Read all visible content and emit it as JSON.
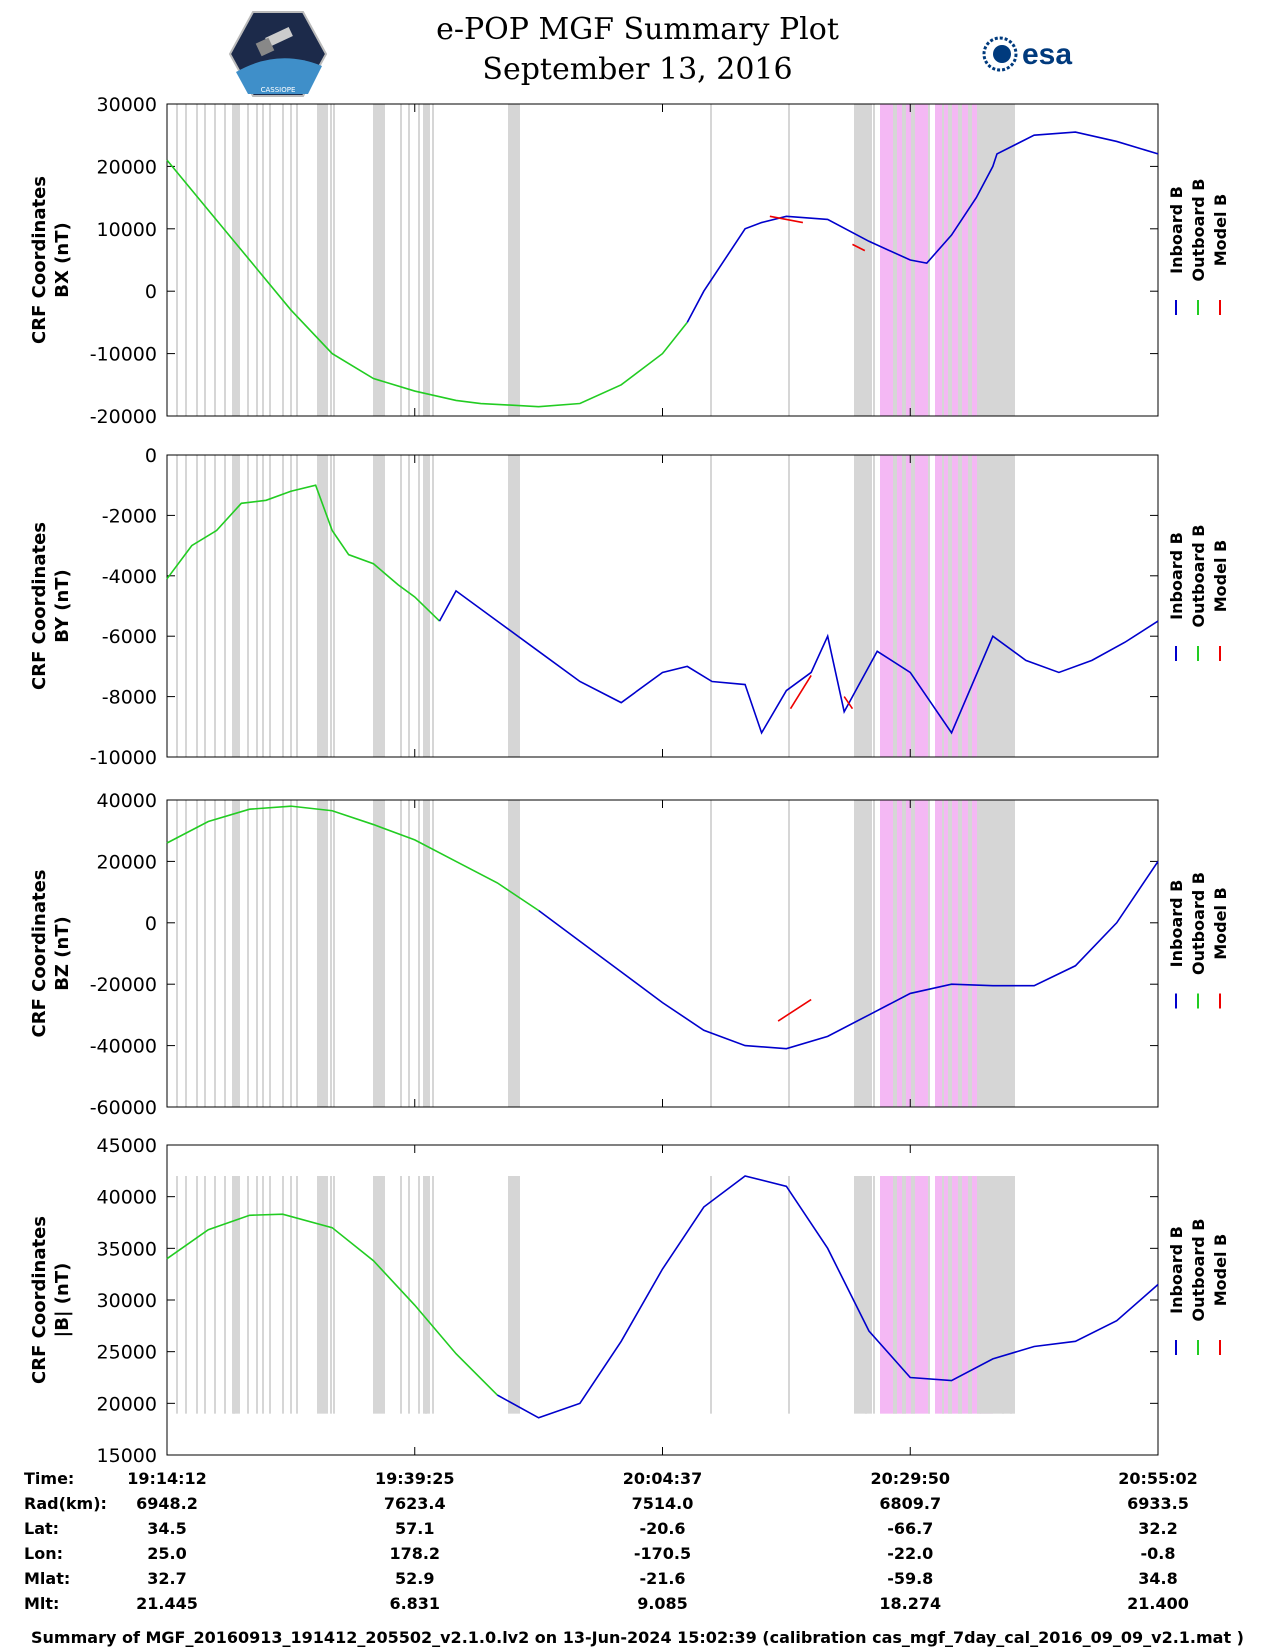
{
  "header": {
    "title_line1": "e-POP MGF Summary Plot",
    "title_line2": "September 13, 2016",
    "left_logo_text": "CASSIOPE",
    "right_logo_text": "esa"
  },
  "colors": {
    "inboard": "#0000cc",
    "outboard": "#22cc22",
    "model": "#ee0000",
    "gray_band": "#d6d6d6",
    "pink_band": "#f4b8f4",
    "esa_blue": "#003a7d"
  },
  "legend": [
    "Inboard B",
    "Outboard B",
    "Model B"
  ],
  "x_ticks": [
    "19:14:12",
    "19:39:25",
    "20:04:37",
    "20:29:50",
    "20:55:02"
  ],
  "chart_data": [
    {
      "type": "line",
      "ylabel_line1": "CRF Coordinates",
      "ylabel_line2": "BX (nT)",
      "ylim": [
        -20000,
        30000
      ],
      "yticks": [
        "30000",
        "20000",
        "10000",
        "0",
        "-10000",
        "-20000"
      ],
      "x_minutes": [
        0,
        5,
        10,
        15,
        20,
        25,
        30,
        35,
        38,
        45,
        50,
        55,
        60,
        63,
        65,
        70,
        72,
        75,
        80,
        85,
        90,
        92,
        95,
        98,
        100,
        100.5,
        105,
        110,
        115,
        120
      ],
      "inboard": [
        21000,
        13000,
        5000,
        -3000,
        -10000,
        -14000,
        -16000,
        -17500,
        -18000,
        -18500,
        -18000,
        -15000,
        -10000,
        -5000,
        0,
        10000,
        11000,
        12000,
        11500,
        8000,
        5000,
        4500,
        9000,
        15000,
        20000,
        22000,
        25000,
        25500,
        24000,
        22000
      ],
      "outboard_end_index": 13,
      "model_overlay": [
        {
          "x": [
            73,
            77
          ],
          "y": [
            12000,
            11000
          ]
        },
        {
          "x": [
            83,
            84.5
          ],
          "y": [
            7500,
            6500
          ]
        }
      ]
    },
    {
      "type": "line",
      "ylabel_line1": "CRF Coordinates",
      "ylabel_line2": "BY (nT)",
      "ylim": [
        -10000,
        0
      ],
      "yticks": [
        "0",
        "-2000",
        "-4000",
        "-6000",
        "-8000",
        "-10000"
      ],
      "x_minutes": [
        0,
        3,
        6,
        9,
        12,
        15,
        18,
        20,
        22,
        25,
        28,
        30,
        33,
        35,
        40,
        45,
        50,
        55,
        60,
        63,
        66,
        70,
        72,
        75,
        78,
        80,
        82,
        86,
        90,
        95,
        100,
        104,
        108,
        112,
        116,
        120
      ],
      "inboard": [
        -4100,
        -3000,
        -2500,
        -1600,
        -1500,
        -1200,
        -1000,
        -2500,
        -3300,
        -3600,
        -4300,
        -4700,
        -5500,
        -4500,
        -5500,
        -6500,
        -7500,
        -8200,
        -7200,
        -7000,
        -7500,
        -7600,
        -9200,
        -7800,
        -7200,
        -6000,
        -8500,
        -6500,
        -7200,
        -9200,
        -6000,
        -6800,
        -7200,
        -6800,
        -6200,
        -5500
      ],
      "outboard_end_index": 12,
      "model_overlay": [
        {
          "x": [
            75.5,
            78
          ],
          "y": [
            -8400,
            -7300
          ]
        },
        {
          "x": [
            82,
            83
          ],
          "y": [
            -8000,
            -8400
          ]
        }
      ]
    },
    {
      "type": "line",
      "ylabel_line1": "CRF Coordinates",
      "ylabel_line2": "BZ (nT)",
      "ylim": [
        -60000,
        40000
      ],
      "yticks": [
        "40000",
        "20000",
        "0",
        "-20000",
        "-40000",
        "-60000"
      ],
      "x_minutes": [
        0,
        5,
        10,
        15,
        20,
        25,
        30,
        35,
        40,
        45,
        50,
        55,
        60,
        65,
        70,
        75,
        80,
        85,
        90,
        95,
        100,
        105,
        110,
        115,
        120
      ],
      "inboard": [
        26000,
        33000,
        37000,
        38000,
        36500,
        32000,
        27000,
        20000,
        13000,
        4000,
        -6000,
        -16000,
        -26000,
        -35000,
        -40000,
        -41000,
        -37000,
        -30000,
        -23000,
        -20000,
        -20500,
        -20500,
        -14000,
        0,
        20000
      ],
      "outboard_end_index": 9,
      "model_overlay": [
        {
          "x": [
            74,
            78
          ],
          "y": [
            -32000,
            -25000
          ]
        }
      ]
    },
    {
      "type": "line",
      "ylabel_line1": "CRF Coordinates",
      "ylabel_line2": "|B| (nT)",
      "ylim": [
        15000,
        45000
      ],
      "yticks": [
        "45000",
        "40000",
        "35000",
        "30000",
        "25000",
        "20000",
        "15000"
      ],
      "x_minutes": [
        0,
        5,
        10,
        14,
        20,
        25,
        30,
        35,
        40,
        45,
        50,
        55,
        60,
        65,
        70,
        75,
        80,
        85,
        90,
        95,
        100,
        105,
        110,
        115,
        120
      ],
      "inboard": [
        34000,
        36800,
        38200,
        38300,
        37000,
        33800,
        29500,
        24800,
        20800,
        18600,
        20000,
        26000,
        33000,
        39000,
        42000,
        41000,
        35000,
        27000,
        22500,
        22200,
        24300,
        25500,
        26000,
        28000,
        31500
      ],
      "outboard_end_index": 8,
      "model_overlay": []
    }
  ],
  "info_table": {
    "labels": [
      "Time:",
      "Rad(km):",
      "Lat:",
      "Lon:",
      "Mlat:",
      "Mlt:"
    ],
    "columns": [
      [
        "19:14:12",
        "6948.2",
        "34.5",
        "25.0",
        "32.7",
        "21.445"
      ],
      [
        "19:39:25",
        "7623.4",
        "57.1",
        "178.2",
        "52.9",
        "6.831"
      ],
      [
        "20:04:37",
        "7514.0",
        "-20.6",
        "-170.5",
        "-21.6",
        "9.085"
      ],
      [
        "20:29:50",
        "6809.7",
        "-66.7",
        "-22.0",
        "-59.8",
        "18.274"
      ],
      [
        "20:55:02",
        "6933.5",
        "32.2",
        "-0.8",
        "34.8",
        "21.400"
      ]
    ]
  },
  "footer": "Summary of MGF_20160913_191412_205502_v2.1.0.lv2 on 13-Jun-2024 15:02:39 (calibration cas_mgf_7day_cal_2016_09_09_v2.1.mat )"
}
